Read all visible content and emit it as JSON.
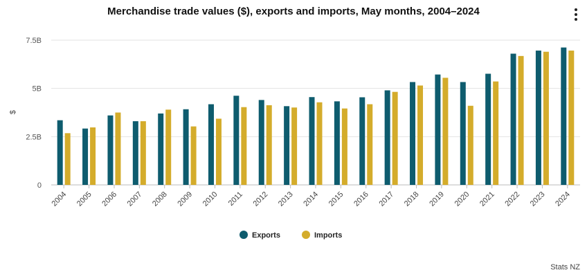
{
  "title": "Merchandise trade values ($), exports and imports, May months, 2004–2024",
  "source": "Stats NZ",
  "menu_icon": "kebab-menu-icon",
  "chart_data": {
    "type": "bar",
    "title": "Merchandise trade values ($), exports and imports, May months, 2004–2024",
    "xlabel": "",
    "ylabel": "$",
    "ylim": [
      0,
      7.5
    ],
    "yticks": [
      {
        "value": 0,
        "label": "0"
      },
      {
        "value": 2.5,
        "label": "2.5B"
      },
      {
        "value": 5,
        "label": "5B"
      },
      {
        "value": 7.5,
        "label": "7.5B"
      }
    ],
    "grid": true,
    "legend_position": "bottom",
    "categories": [
      "2004",
      "2005",
      "2006",
      "2007",
      "2008",
      "2009",
      "2010",
      "2011",
      "2012",
      "2013",
      "2014",
      "2015",
      "2016",
      "2017",
      "2018",
      "2019",
      "2020",
      "2021",
      "2022",
      "2023",
      "2024"
    ],
    "series": [
      {
        "name": "Exports",
        "color": "#0e5c6e",
        "values": [
          3.35,
          2.92,
          3.6,
          3.3,
          3.7,
          3.92,
          4.18,
          4.62,
          4.4,
          4.08,
          4.55,
          4.33,
          4.54,
          4.9,
          5.33,
          5.72,
          5.33,
          5.76,
          6.8,
          6.96,
          7.12
        ]
      },
      {
        "name": "Imports",
        "color": "#d4ac2b",
        "values": [
          2.68,
          2.98,
          3.75,
          3.3,
          3.9,
          3.03,
          3.43,
          4.03,
          4.13,
          4.01,
          4.28,
          3.96,
          4.18,
          4.82,
          5.15,
          5.55,
          4.1,
          5.36,
          6.68,
          6.9,
          6.96
        ]
      }
    ]
  }
}
